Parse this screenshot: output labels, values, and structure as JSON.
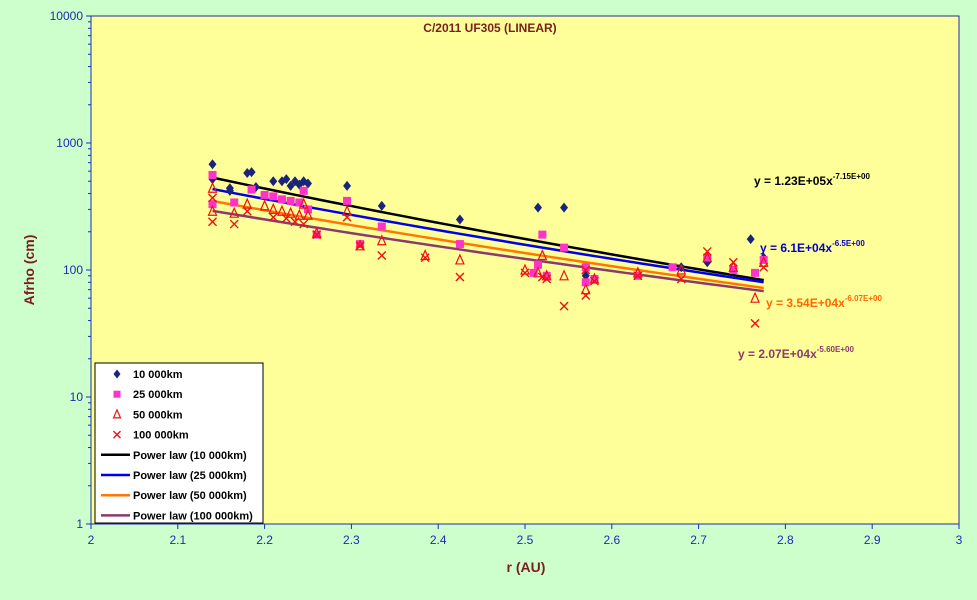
{
  "chart_data": {
    "type": "scatter",
    "title": "C/2011 UF305 (LINEAR)",
    "xlabel": "r (AU)",
    "ylabel": "Afrho (cm)",
    "xlim": [
      2,
      3
    ],
    "ylim": [
      1,
      10000
    ],
    "yscale": "log",
    "grid": false,
    "legend_position": "bottom-left",
    "colors": {
      "plot_background": "#ffff99",
      "outer_background": "#ccffcc",
      "axis_text": "#1f2bb0",
      "title_text": "#7a1f1f"
    },
    "x_ticks": [
      "2",
      "2.1",
      "2.2",
      "2.3",
      "2.4",
      "2.5",
      "2.6",
      "2.7",
      "2.8",
      "2.9",
      "3"
    ],
    "y_ticks": [
      "1",
      "10",
      "100",
      "1000",
      "10000"
    ],
    "series": [
      {
        "name": "10 000km",
        "marker": "diamond",
        "color": "#1a237e",
        "points": [
          [
            2.14,
            680
          ],
          [
            2.14,
            520
          ],
          [
            2.16,
            440
          ],
          [
            2.16,
            420
          ],
          [
            2.18,
            580
          ],
          [
            2.185,
            590
          ],
          [
            2.19,
            450
          ],
          [
            2.21,
            500
          ],
          [
            2.22,
            500
          ],
          [
            2.225,
            520
          ],
          [
            2.23,
            460
          ],
          [
            2.235,
            500
          ],
          [
            2.24,
            470
          ],
          [
            2.245,
            500
          ],
          [
            2.25,
            480
          ],
          [
            2.295,
            460
          ],
          [
            2.335,
            320
          ],
          [
            2.425,
            250
          ],
          [
            2.515,
            310
          ],
          [
            2.545,
            310
          ],
          [
            2.57,
            90
          ],
          [
            2.68,
            105
          ],
          [
            2.71,
            115
          ],
          [
            2.76,
            175
          ],
          [
            2.775,
            125
          ]
        ]
      },
      {
        "name": "25 000km",
        "marker": "square",
        "color": "#ff33cc",
        "points": [
          [
            2.14,
            560
          ],
          [
            2.14,
            330
          ],
          [
            2.165,
            340
          ],
          [
            2.185,
            430
          ],
          [
            2.2,
            390
          ],
          [
            2.21,
            380
          ],
          [
            2.22,
            360
          ],
          [
            2.23,
            350
          ],
          [
            2.24,
            340
          ],
          [
            2.245,
            420
          ],
          [
            2.25,
            300
          ],
          [
            2.26,
            190
          ],
          [
            2.295,
            350
          ],
          [
            2.31,
            160
          ],
          [
            2.335,
            220
          ],
          [
            2.425,
            160
          ],
          [
            2.51,
            95
          ],
          [
            2.515,
            110
          ],
          [
            2.52,
            190
          ],
          [
            2.525,
            90
          ],
          [
            2.545,
            150
          ],
          [
            2.57,
            80
          ],
          [
            2.57,
            105
          ],
          [
            2.58,
            85
          ],
          [
            2.63,
            90
          ],
          [
            2.67,
            105
          ],
          [
            2.71,
            125
          ],
          [
            2.74,
            100
          ],
          [
            2.765,
            95
          ],
          [
            2.775,
            120
          ]
        ]
      },
      {
        "name": "50 000km",
        "marker": "triangle",
        "color": "#ee1111",
        "points": [
          [
            2.14,
            440
          ],
          [
            2.14,
            290
          ],
          [
            2.165,
            280
          ],
          [
            2.18,
            330
          ],
          [
            2.2,
            320
          ],
          [
            2.21,
            300
          ],
          [
            2.22,
            290
          ],
          [
            2.23,
            280
          ],
          [
            2.24,
            270
          ],
          [
            2.245,
            330
          ],
          [
            2.25,
            270
          ],
          [
            2.26,
            195
          ],
          [
            2.295,
            290
          ],
          [
            2.31,
            155
          ],
          [
            2.335,
            170
          ],
          [
            2.385,
            130
          ],
          [
            2.425,
            120
          ],
          [
            2.5,
            100
          ],
          [
            2.515,
            95
          ],
          [
            2.52,
            130
          ],
          [
            2.525,
            90
          ],
          [
            2.545,
            90
          ],
          [
            2.57,
            70
          ],
          [
            2.58,
            85
          ],
          [
            2.63,
            95
          ],
          [
            2.68,
            100
          ],
          [
            2.71,
            125
          ],
          [
            2.74,
            105
          ],
          [
            2.765,
            60
          ],
          [
            2.775,
            115
          ]
        ]
      },
      {
        "name": "100 000km",
        "marker": "x",
        "color": "#ee1111",
        "points": [
          [
            2.14,
            240
          ],
          [
            2.14,
            370
          ],
          [
            2.165,
            230
          ],
          [
            2.18,
            290
          ],
          [
            2.21,
            260
          ],
          [
            2.225,
            255
          ],
          [
            2.235,
            240
          ],
          [
            2.245,
            230
          ],
          [
            2.26,
            190
          ],
          [
            2.295,
            260
          ],
          [
            2.31,
            155
          ],
          [
            2.335,
            130
          ],
          [
            2.385,
            125
          ],
          [
            2.425,
            88
          ],
          [
            2.5,
            95
          ],
          [
            2.52,
            88
          ],
          [
            2.525,
            85
          ],
          [
            2.545,
            52
          ],
          [
            2.57,
            63
          ],
          [
            2.57,
            100
          ],
          [
            2.58,
            82
          ],
          [
            2.63,
            90
          ],
          [
            2.68,
            85
          ],
          [
            2.71,
            140
          ],
          [
            2.74,
            115
          ],
          [
            2.765,
            38
          ],
          [
            2.775,
            105
          ]
        ]
      }
    ],
    "trendlines": [
      {
        "name": "Power law (10 000km)",
        "color": "#000000",
        "a": 123000,
        "b": -7.15,
        "x_range": [
          2.14,
          2.775
        ],
        "eq_main": "y = 1.23E+05x",
        "eq_exp": "-7.15E+00",
        "eq_color": "#000000"
      },
      {
        "name": "Power law (25 000km)",
        "color": "#0000ee",
        "a": 61000,
        "b": -6.5,
        "x_range": [
          2.14,
          2.775
        ],
        "eq_main": "y = 6.1E+04x",
        "eq_exp": "-6.5E+00",
        "eq_color": "#0000cc"
      },
      {
        "name": "Power law (50 000km)",
        "color": "#ff7700",
        "a": 35400,
        "b": -6.07,
        "x_range": [
          2.14,
          2.775
        ],
        "eq_main": "y = 3.54E+04x",
        "eq_exp": "-6.07E+00",
        "eq_color": "#ff6600"
      },
      {
        "name": "Power law (100 000km)",
        "color": "#8b3a6b",
        "a": 20700,
        "b": -5.6,
        "x_range": [
          2.14,
          2.775
        ],
        "eq_main": "y = 2.07E+04x",
        "eq_exp": "-5.60E+00",
        "eq_color": "#8b3a6b"
      }
    ]
  }
}
